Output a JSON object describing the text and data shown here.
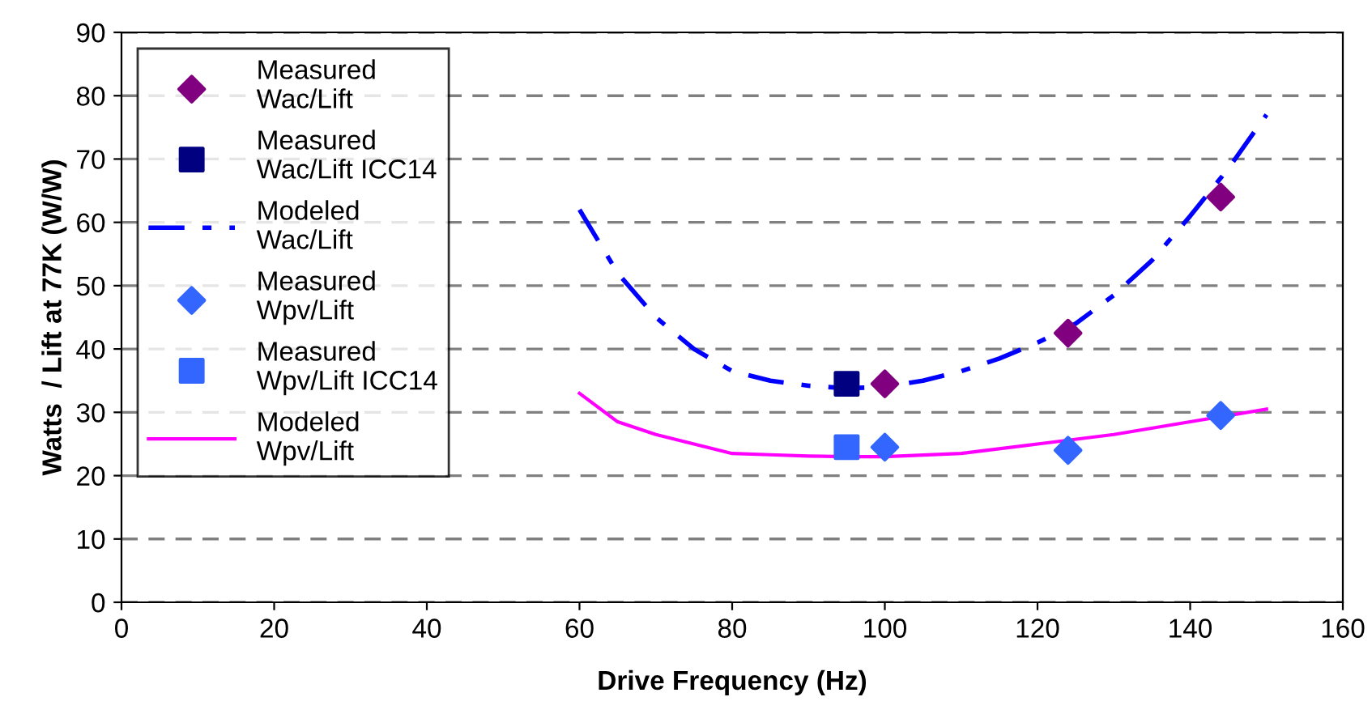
{
  "chart_data": {
    "type": "scatter",
    "xlabel": "Drive Frequency (Hz)",
    "ylabel": "Watts  / Lift at 77K (W/W)",
    "xlim": [
      0,
      160
    ],
    "xticks": [
      0,
      20,
      40,
      60,
      80,
      100,
      120,
      140,
      160
    ],
    "ylim": [
      0,
      90
    ],
    "yticks": [
      0,
      10,
      20,
      30,
      40,
      50,
      60,
      70,
      80,
      90
    ],
    "grid": "y",
    "legend": "top left",
    "series": [
      {
        "name": "Measured\nWac/Lift",
        "marker": "diamond",
        "color": "#800080",
        "x": [
          100,
          124,
          144
        ],
        "values": [
          34.5,
          42.5,
          64
        ]
      },
      {
        "name": "Measured\nWac/Lift ICC14",
        "marker": "square",
        "color": "#000080",
        "x": [
          95
        ],
        "values": [
          34.5
        ]
      },
      {
        "name": "Modeled\nWac/Lift",
        "type": "line",
        "line_style": "dashdot",
        "color": "#0000ff",
        "x": [
          60,
          65,
          70,
          75,
          80,
          85,
          90,
          95,
          100,
          105,
          110,
          115,
          120,
          125,
          130,
          135,
          140,
          145,
          150
        ],
        "values": [
          62,
          52,
          45,
          40,
          36.5,
          35,
          34.2,
          33.8,
          34,
          35,
          36.5,
          38.5,
          41,
          44,
          48.5,
          54,
          61,
          68.5,
          77
        ]
      },
      {
        "name": "Measured\nWpv/Lift",
        "marker": "diamond",
        "color": "#3366ff",
        "x": [
          100,
          124,
          144
        ],
        "values": [
          24.5,
          24,
          29.5
        ]
      },
      {
        "name": "Measured\nWpv/Lift ICC14",
        "marker": "square",
        "color": "#3366ff",
        "x": [
          95
        ],
        "values": [
          24.5
        ]
      },
      {
        "name": "Modeled\nWpv/Lift",
        "type": "line",
        "line_style": "solid",
        "color": "#ff00ff",
        "x": [
          60,
          65,
          70,
          75,
          80,
          85,
          90,
          95,
          100,
          110,
          120,
          130,
          140,
          150
        ],
        "values": [
          33,
          28.5,
          26.5,
          25,
          23.5,
          23.3,
          23.1,
          23,
          23,
          23.5,
          25,
          26.5,
          28.5,
          30.5
        ]
      }
    ]
  }
}
